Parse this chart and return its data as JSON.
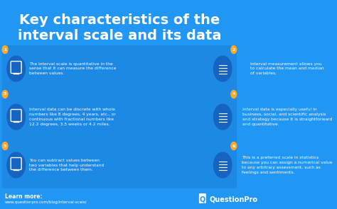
{
  "title_line1": "Key characteristics of the",
  "title_line2": "interval scale and its data",
  "bg_color": "#2196F3",
  "card_color": "#1E88E5",
  "icon_bg_color": "#1565C0",
  "title_color": "#FFFFFF",
  "text_color": "#FFFFFF",
  "accent_color": "#FFA726",
  "learn_more_label": "Learn more:",
  "learn_more_url": "www.questionpro.com/blog/interval-scale/",
  "brand": "QuestionPro",
  "figsize": [
    4.74,
    2.95
  ],
  "dpi": 100,
  "cards": [
    {
      "number": "1",
      "text": "The interval scale is quantitative in the\nsense that it can measure the difference\nbetween values.",
      "side": "left",
      "row": 0
    },
    {
      "number": "2",
      "text": "Interval measurement allows you\nto calculate the mean and median\nof variables.",
      "side": "right",
      "row": 0
    },
    {
      "number": "3",
      "text": "Interval data can be discrete with whole\nnumbers like 8 degrees, 4 years, etc., or\ncontinuous with fractional numbers like\n12.2 degrees, 3.5 weeks or 4.2 miles.",
      "side": "left",
      "row": 1
    },
    {
      "number": "4",
      "text": "Interval data is especially useful in\nbusiness, social, and scientific analysis\nand strategy because it is straightforward\nand quantitative.",
      "side": "right",
      "row": 1
    },
    {
      "number": "5",
      "text": "You can subtract values between\ntwo variables that help understand\nthe difference between them.",
      "side": "left",
      "row": 2
    },
    {
      "number": "6",
      "text": "This is a preferred scale in statistics\nbecause you can assign a numerical value\nto any arbitrary assessment, such as\nfeelings and sentiments.",
      "side": "right",
      "row": 2
    }
  ]
}
